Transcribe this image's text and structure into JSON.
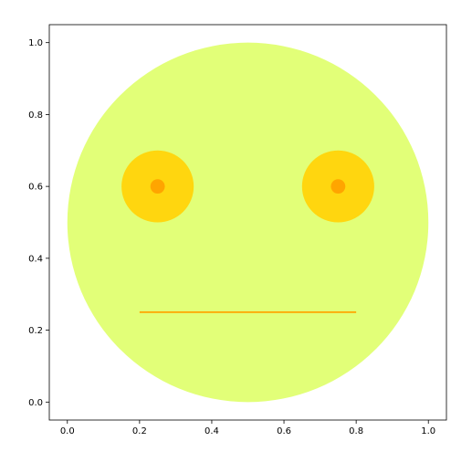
{
  "chart_data": {
    "type": "scatter",
    "title": "",
    "xlabel": "",
    "ylabel": "",
    "xlim": [
      -0.05,
      1.05
    ],
    "ylim": [
      -0.05,
      1.05
    ],
    "grid": false,
    "x_ticks": [
      {
        "value": 0.0,
        "label": "0.0"
      },
      {
        "value": 0.2,
        "label": "0.2"
      },
      {
        "value": 0.4,
        "label": "0.4"
      },
      {
        "value": 0.6,
        "label": "0.6"
      },
      {
        "value": 0.8,
        "label": "0.8"
      },
      {
        "value": 1.0,
        "label": "1.0"
      }
    ],
    "y_ticks": [
      {
        "value": 0.0,
        "label": "0.0"
      },
      {
        "value": 0.2,
        "label": "0.2"
      },
      {
        "value": 0.4,
        "label": "0.4"
      },
      {
        "value": 0.6,
        "label": "0.6"
      },
      {
        "value": 0.8,
        "label": "0.8"
      },
      {
        "value": 1.0,
        "label": "1.0"
      }
    ],
    "shapes": {
      "face": {
        "cx": 0.5,
        "cy": 0.5,
        "r": 0.5,
        "color": "#e2ff78"
      },
      "eyes": [
        {
          "name": "left-eye",
          "cx": 0.25,
          "cy": 0.6,
          "r": 0.1,
          "color": "#ffd60f"
        },
        {
          "name": "right-eye",
          "cx": 0.75,
          "cy": 0.6,
          "r": 0.1,
          "color": "#ffd60f"
        }
      ],
      "pupils": [
        {
          "name": "left-pupil",
          "cx": 0.25,
          "cy": 0.6,
          "r": 0.02,
          "color": "#ffa500"
        },
        {
          "name": "right-pupil",
          "cx": 0.75,
          "cy": 0.6,
          "r": 0.02,
          "color": "#ffa500"
        }
      ],
      "mouth": {
        "x1": 0.2,
        "y1": 0.25,
        "x2": 0.8,
        "y2": 0.25,
        "color": "#ffa500"
      }
    },
    "axis_color": "#000000"
  }
}
